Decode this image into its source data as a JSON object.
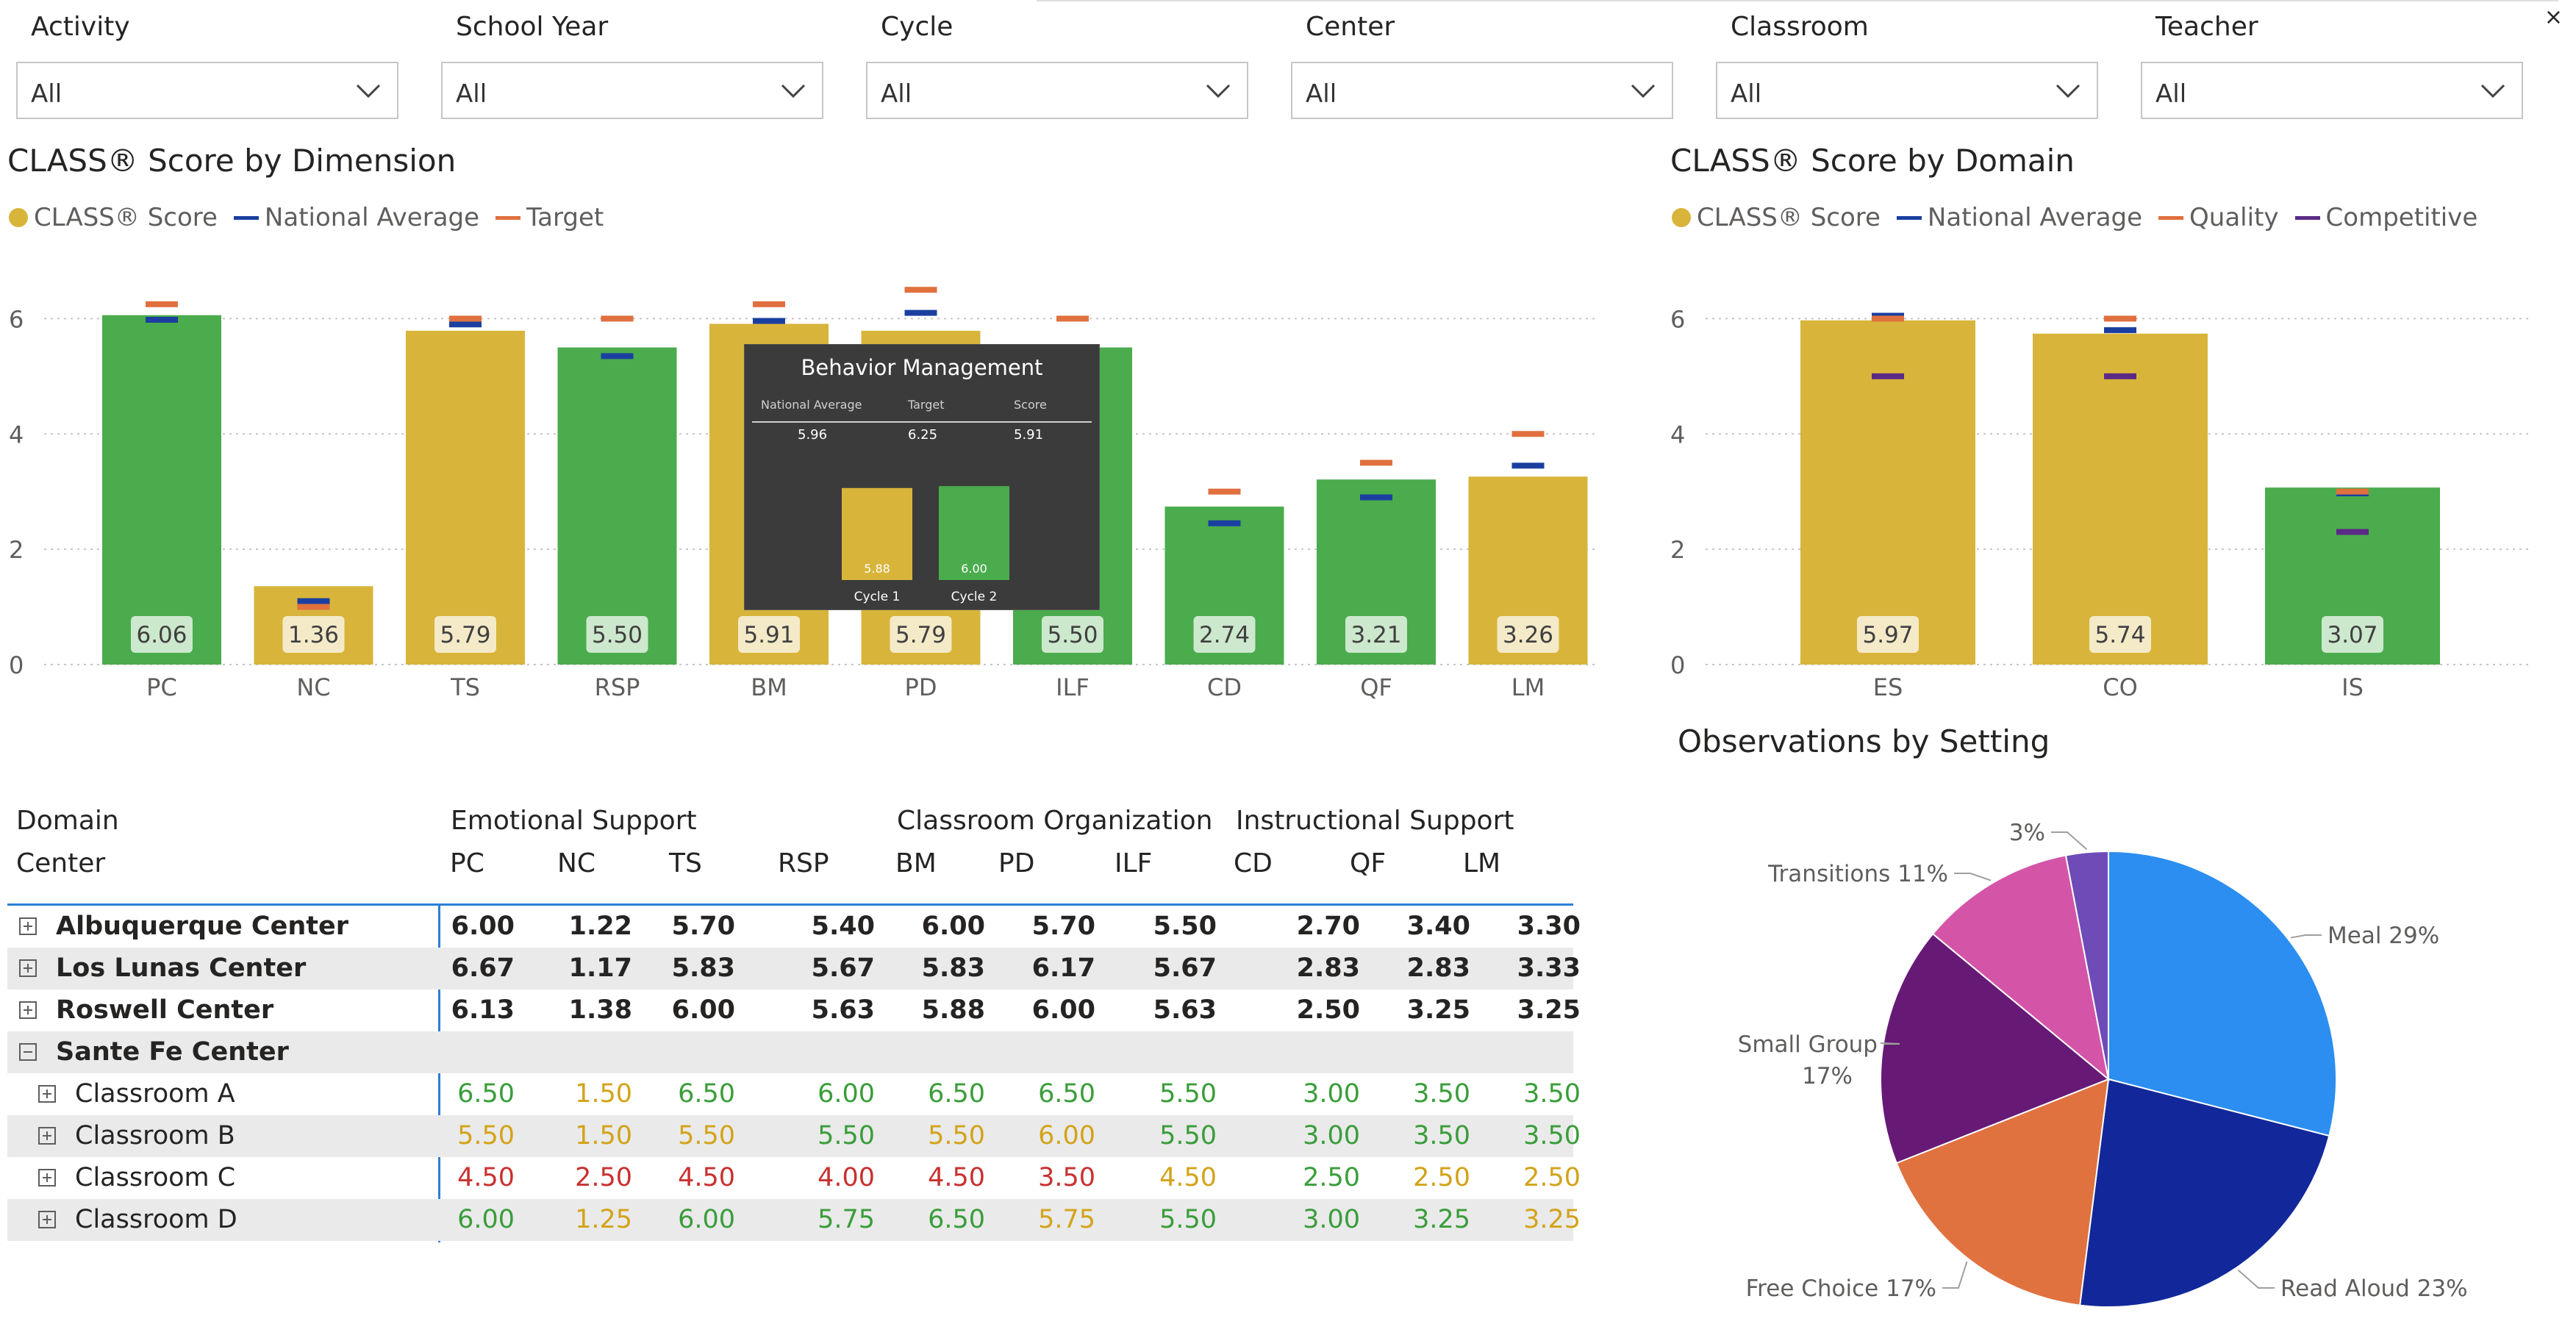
{
  "slicers": [
    {
      "label": "Activity",
      "value": "All"
    },
    {
      "label": "School Year",
      "value": "All"
    },
    {
      "label": "Cycle",
      "value": "All"
    },
    {
      "label": "Center",
      "value": "All"
    },
    {
      "label": "Classroom",
      "value": "All"
    },
    {
      "label": "Teacher",
      "value": "All"
    }
  ],
  "close_glyph": "×",
  "colors": {
    "green": "#4aac4c",
    "gold": "#d8b43a",
    "national": "#1a3fa0",
    "target": "#e0703e",
    "competitive": "#5b2a86",
    "grid": "#c8c6c4"
  },
  "dimension_chart": {
    "title": "CLASS® Score by Dimension",
    "legend": [
      "CLASS® Score",
      "National Average",
      "Target"
    ]
  },
  "domain_chart": {
    "title": "CLASS® Score by Domain",
    "legend": [
      "CLASS® Score",
      "National Average",
      "Quality",
      "Competitive"
    ]
  },
  "pie_chart": {
    "title": "Observations by Setting"
  },
  "chart_data": [
    {
      "type": "bar",
      "title": "CLASS® Score by Dimension",
      "categories": [
        "PC",
        "NC",
        "TS",
        "RSP",
        "BM",
        "PD",
        "ILF",
        "CD",
        "QF",
        "LM"
      ],
      "values": [
        6.06,
        1.36,
        5.79,
        5.5,
        5.91,
        5.79,
        5.5,
        2.74,
        3.21,
        3.26
      ],
      "value_labels": [
        "6.06",
        "1.36",
        "5.79",
        "5.50",
        "5.91",
        "5.79",
        "5.50",
        "2.74",
        "3.21",
        "3.26"
      ],
      "bar_colors": [
        "green",
        "gold",
        "gold",
        "green",
        "gold",
        "gold",
        "green",
        "green",
        "green",
        "gold"
      ],
      "series": [
        {
          "name": "National Average",
          "values": [
            5.98,
            1.1,
            5.9,
            5.35,
            5.96,
            6.1,
            null,
            2.45,
            2.9,
            3.45
          ]
        },
        {
          "name": "Target",
          "values": [
            6.25,
            1.0,
            6.0,
            6.0,
            6.25,
            6.5,
            6.0,
            3.0,
            3.5,
            4.0
          ]
        }
      ],
      "yticks": [
        "0",
        "2",
        "4",
        "6"
      ],
      "ylim": [
        0,
        7
      ]
    },
    {
      "type": "bar",
      "title": "CLASS® Score by Domain",
      "categories": [
        "ES",
        "CO",
        "IS"
      ],
      "values": [
        5.97,
        5.74,
        3.07
      ],
      "value_labels": [
        "5.97",
        "5.74",
        "3.07"
      ],
      "bar_colors": [
        "gold",
        "gold",
        "green"
      ],
      "series": [
        {
          "name": "National Average",
          "values": [
            6.05,
            5.8,
            2.97
          ]
        },
        {
          "name": "Quality",
          "values": [
            6.0,
            6.0,
            3.0
          ]
        },
        {
          "name": "Competitive",
          "values": [
            5.0,
            5.0,
            2.3
          ]
        }
      ],
      "yticks": [
        "0",
        "2",
        "4",
        "6"
      ],
      "ylim": [
        0,
        7
      ]
    },
    {
      "type": "pie",
      "title": "Observations by Setting",
      "slices": [
        {
          "label": "Meal 29%",
          "value": 29,
          "color": "#2b8ef0"
        },
        {
          "label": "Read Aloud 23%",
          "value": 23,
          "color": "#12289a"
        },
        {
          "label": "Free Choice 17%",
          "value": 17,
          "color": "#e07240"
        },
        {
          "label": "Small Group",
          "label2": "17%",
          "value": 17,
          "color": "#661a76"
        },
        {
          "label": "Transitions 11%",
          "value": 11,
          "color": "#d455a8"
        },
        {
          "label": "3%",
          "value": 3,
          "color": "#6f4bb8"
        }
      ]
    }
  ],
  "tooltip": {
    "title": "Behavior Management",
    "headers": [
      "National Average",
      "Target",
      "Score"
    ],
    "values": [
      "5.96",
      "6.25",
      "5.91"
    ],
    "bars": [
      {
        "label": "Cycle 1",
        "value": 5.88,
        "value_label": "5.88",
        "color": "gold"
      },
      {
        "label": "Cycle 2",
        "value": 6.0,
        "value_label": "6.00",
        "color": "green"
      }
    ]
  },
  "matrix": {
    "row_header_1": "Domain",
    "row_header_2": "Center",
    "groups": [
      "Emotional Support",
      "Classroom Organization",
      "Instructional Support"
    ],
    "columns": [
      "PC",
      "NC",
      "TS",
      "RSP",
      "BM",
      "PD",
      "ILF",
      "CD",
      "QF",
      "LM"
    ],
    "rows": [
      {
        "name": "Albuquerque Center",
        "level": 0,
        "expander": "plus",
        "bold": true,
        "shade": false,
        "values": [
          "6.00",
          "1.22",
          "5.70",
          "5.40",
          "6.00",
          "5.70",
          "5.50",
          "2.70",
          "3.40",
          "3.30"
        ],
        "colors": []
      },
      {
        "name": "Los Lunas Center",
        "level": 0,
        "expander": "plus",
        "bold": true,
        "shade": true,
        "values": [
          "6.67",
          "1.17",
          "5.83",
          "5.67",
          "5.83",
          "6.17",
          "5.67",
          "2.83",
          "2.83",
          "3.33"
        ],
        "colors": []
      },
      {
        "name": "Roswell Center",
        "level": 0,
        "expander": "plus",
        "bold": true,
        "shade": false,
        "values": [
          "6.13",
          "1.38",
          "6.00",
          "5.63",
          "5.88",
          "6.00",
          "5.63",
          "2.50",
          "3.25",
          "3.25"
        ],
        "colors": []
      },
      {
        "name": "Sante Fe Center",
        "level": 0,
        "expander": "minus",
        "bold": true,
        "shade": true,
        "values": [],
        "colors": []
      },
      {
        "name": "Classroom A",
        "level": 1,
        "expander": "plus",
        "bold": false,
        "shade": false,
        "values": [
          "6.50",
          "1.50",
          "6.50",
          "6.00",
          "6.50",
          "6.50",
          "5.50",
          "3.00",
          "3.50",
          "3.50"
        ],
        "colors": [
          "green",
          "yellow",
          "green",
          "green",
          "green",
          "green",
          "green",
          "green",
          "green",
          "green"
        ]
      },
      {
        "name": "Classroom B",
        "level": 1,
        "expander": "plus",
        "bold": false,
        "shade": true,
        "values": [
          "5.50",
          "1.50",
          "5.50",
          "5.50",
          "5.50",
          "6.00",
          "5.50",
          "3.00",
          "3.50",
          "3.50"
        ],
        "colors": [
          "yellow",
          "yellow",
          "yellow",
          "green",
          "yellow",
          "yellow",
          "green",
          "green",
          "green",
          "green"
        ]
      },
      {
        "name": "Classroom C",
        "level": 1,
        "expander": "plus",
        "bold": false,
        "shade": false,
        "values": [
          "4.50",
          "2.50",
          "4.50",
          "4.00",
          "4.50",
          "3.50",
          "4.50",
          "2.50",
          "2.50",
          "2.50"
        ],
        "colors": [
          "red",
          "red",
          "red",
          "red",
          "red",
          "red",
          "yellow",
          "green",
          "yellow",
          "yellow"
        ]
      },
      {
        "name": "Classroom D",
        "level": 1,
        "expander": "plus",
        "bold": false,
        "shade": true,
        "values": [
          "6.00",
          "1.25",
          "6.00",
          "5.75",
          "6.50",
          "5.75",
          "5.50",
          "3.00",
          "3.25",
          "3.25"
        ],
        "colors": [
          "green",
          "yellow",
          "green",
          "green",
          "green",
          "yellow",
          "green",
          "green",
          "green",
          "yellow"
        ]
      }
    ]
  }
}
